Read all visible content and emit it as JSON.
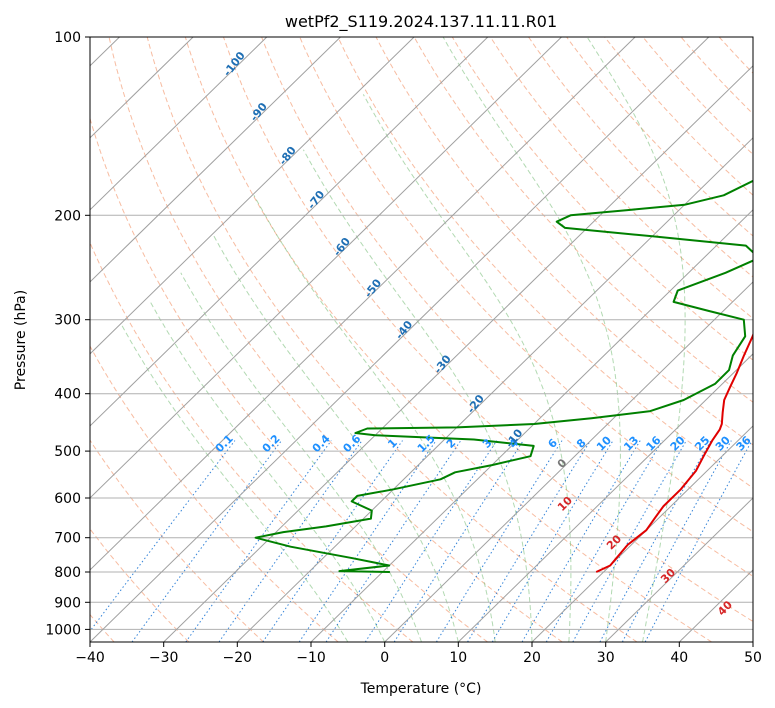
{
  "chart_data": {
    "type": "line",
    "title": "wetPf2_S119.2024.137.11.11.R01",
    "xlabel": "Temperature (°C)",
    "ylabel": "Pressure (hPa)",
    "xlim": [
      -40,
      50
    ],
    "ylim": [
      1050,
      100
    ],
    "y_scale": "log",
    "x_ticks": [
      "−40",
      "−30",
      "−20",
      "−10",
      "0",
      "10",
      "20",
      "30",
      "40",
      "50"
    ],
    "y_ticks": [
      "100",
      "200",
      "300",
      "400",
      "500",
      "600",
      "700",
      "800",
      "900",
      "1000"
    ],
    "grid": true,
    "series": [
      {
        "color": "#e00000",
        "values": [
          {
            "x": 19.0,
            "y": 800
          },
          {
            "x": 20.0,
            "y": 780
          },
          {
            "x": 19.5,
            "y": 720
          },
          {
            "x": 20.0,
            "y": 680
          },
          {
            "x": 19.5,
            "y": 650
          },
          {
            "x": 19.0,
            "y": 620
          },
          {
            "x": 19.0,
            "y": 580
          },
          {
            "x": 18.5,
            "y": 540
          },
          {
            "x": 17.5,
            "y": 510
          },
          {
            "x": 16.5,
            "y": 480
          },
          {
            "x": 16.0,
            "y": 460
          },
          {
            "x": 15.5,
            "y": 450
          },
          {
            "x": 14.0,
            "y": 430
          },
          {
            "x": 12.5,
            "y": 410
          },
          {
            "x": 11.5,
            "y": 390
          },
          {
            "x": 10.5,
            "y": 370
          },
          {
            "x": 9.0,
            "y": 345
          },
          {
            "x": 7.5,
            "y": 320
          },
          {
            "x": 6.0,
            "y": 300
          },
          {
            "x": 5.8,
            "y": 290
          },
          {
            "x": 6.3,
            "y": 270
          },
          {
            "x": 6.0,
            "y": 255
          },
          {
            "x": 4.5,
            "y": 238
          },
          {
            "x": 3.8,
            "y": 228
          },
          {
            "x": 5.0,
            "y": 215
          },
          {
            "x": 6.0,
            "y": 202
          },
          {
            "x": 5.8,
            "y": 190
          },
          {
            "x": 5.5,
            "y": 175
          },
          {
            "x": 5.5,
            "y": 160
          },
          {
            "x": 6.0,
            "y": 148
          },
          {
            "x": 7.0,
            "y": 135
          },
          {
            "x": 7.5,
            "y": 125
          },
          {
            "x": 9.0,
            "y": 115
          },
          {
            "x": 10.0,
            "y": 108
          },
          {
            "x": 11.0,
            "y": 100
          }
        ]
      },
      {
        "color": "#008000",
        "values": [
          {
            "x": -9.0,
            "y": 800
          },
          {
            "x": -16.0,
            "y": 797
          },
          {
            "x": -10.0,
            "y": 780
          },
          {
            "x": -16.0,
            "y": 758
          },
          {
            "x": -26.0,
            "y": 725
          },
          {
            "x": -32.0,
            "y": 700
          },
          {
            "x": -29.0,
            "y": 685
          },
          {
            "x": -24.0,
            "y": 670
          },
          {
            "x": -19.0,
            "y": 650
          },
          {
            "x": -20.0,
            "y": 630
          },
          {
            "x": -24.0,
            "y": 608
          },
          {
            "x": -24.0,
            "y": 595
          },
          {
            "x": -20.0,
            "y": 580
          },
          {
            "x": -15.0,
            "y": 558
          },
          {
            "x": -14.0,
            "y": 543
          },
          {
            "x": -10.0,
            "y": 528
          },
          {
            "x": -6.0,
            "y": 510
          },
          {
            "x": -7.0,
            "y": 490
          },
          {
            "x": -16.0,
            "y": 478
          },
          {
            "x": -30.0,
            "y": 470
          },
          {
            "x": -33.0,
            "y": 466
          },
          {
            "x": -32.0,
            "y": 458
          },
          {
            "x": -20.0,
            "y": 456
          },
          {
            "x": -10.0,
            "y": 450
          },
          {
            "x": -3.0,
            "y": 440
          },
          {
            "x": 4.0,
            "y": 428
          },
          {
            "x": 7.0,
            "y": 410
          },
          {
            "x": 9.0,
            "y": 385
          },
          {
            "x": 9.0,
            "y": 365
          },
          {
            "x": 7.5,
            "y": 345
          },
          {
            "x": 6.5,
            "y": 320
          },
          {
            "x": 4.0,
            "y": 300
          },
          {
            "x": -2.0,
            "y": 290
          },
          {
            "x": -8.0,
            "y": 280
          },
          {
            "x": -9.0,
            "y": 268
          },
          {
            "x": -5.0,
            "y": 250
          },
          {
            "x": -2.5,
            "y": 236
          },
          {
            "x": -6.0,
            "y": 225
          },
          {
            "x": -20.0,
            "y": 217
          },
          {
            "x": -33.0,
            "y": 210
          },
          {
            "x": -35.0,
            "y": 205
          },
          {
            "x": -34.0,
            "y": 200
          },
          {
            "x": -27.0,
            "y": 196
          },
          {
            "x": -20.0,
            "y": 192
          },
          {
            "x": -16.0,
            "y": 185
          },
          {
            "x": -13.0,
            "y": 170
          },
          {
            "x": -10.0,
            "y": 155
          },
          {
            "x": -7.0,
            "y": 143
          },
          {
            "x": -5.0,
            "y": 132
          },
          {
            "x": -4.5,
            "y": 120
          },
          {
            "x": -4.0,
            "y": 112
          },
          {
            "x": -2.0,
            "y": 106
          },
          {
            "x": 0.0,
            "y": 100
          }
        ]
      }
    ],
    "annotations": {
      "isotherm_labels": [
        "-100",
        "-90",
        "-80",
        "-70",
        "-60",
        "-50",
        "-40",
        "-30",
        "-20",
        "-10"
      ],
      "mixing_ratio_labels": [
        "0.1",
        "0.2",
        "0.4",
        "0.6",
        "1",
        "1.5",
        "2",
        "3",
        "4",
        "6",
        "8",
        "10",
        "13",
        "16",
        "20",
        "25",
        "30",
        "36"
      ],
      "zero_label": "0",
      "adiabat_labels": [
        "10",
        "20",
        "30",
        "40"
      ]
    }
  }
}
